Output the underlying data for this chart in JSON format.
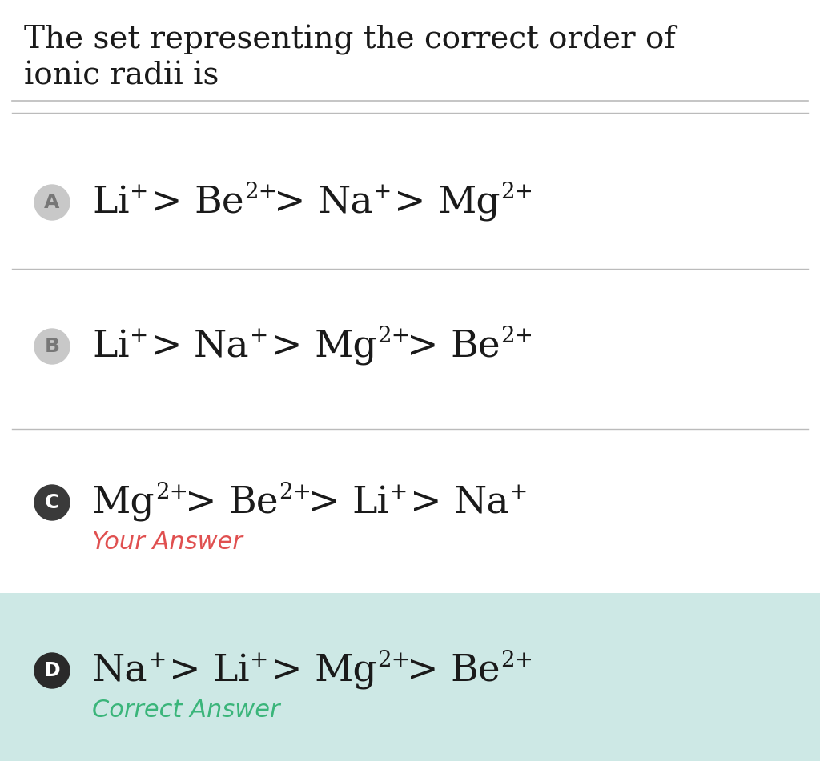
{
  "title_line1": "The set representing the correct order of",
  "title_line2": "ionic radii is",
  "bg_color": "#ffffff",
  "option_d_bg": "#cde8e5",
  "divider_color": "#bbbbbb",
  "text_color": "#1a1a1a",
  "your_answer_color": "#e05050",
  "correct_answer_color": "#3ab57a",
  "options": [
    {
      "label": "A",
      "label_bg": "#c8c8c8",
      "label_text_color": "#777777",
      "formula_parts": [
        [
          "Li",
          "+"
        ],
        [
          " > "
        ],
        [
          "Be",
          "2+"
        ],
        [
          " > "
        ],
        [
          "Na",
          "+"
        ],
        [
          " > "
        ],
        [
          "Mg",
          "2+"
        ]
      ],
      "sub_text": null,
      "sub_text_color": null
    },
    {
      "label": "B",
      "label_bg": "#c8c8c8",
      "label_text_color": "#777777",
      "formula_parts": [
        [
          "Li",
          "+"
        ],
        [
          " > "
        ],
        [
          "Na",
          "+"
        ],
        [
          " > "
        ],
        [
          "Mg",
          "2+"
        ],
        [
          " > "
        ],
        [
          "Be",
          "2+"
        ]
      ],
      "sub_text": null,
      "sub_text_color": null
    },
    {
      "label": "C",
      "label_bg": "#3a3a3a",
      "label_text_color": "#ffffff",
      "formula_parts": [
        [
          "Mg",
          "2+"
        ],
        [
          " > "
        ],
        [
          "Be",
          "2+"
        ],
        [
          " > "
        ],
        [
          "Li",
          "+"
        ],
        [
          " > "
        ],
        [
          "Na",
          "+"
        ]
      ],
      "sub_text": "Your Answer",
      "sub_text_color": "#e05050"
    },
    {
      "label": "D",
      "label_bg": "#2a2a2a",
      "label_text_color": "#ffffff",
      "formula_parts": [
        [
          "Na",
          "+"
        ],
        [
          " > "
        ],
        [
          "Li",
          "+"
        ],
        [
          " > "
        ],
        [
          "Mg",
          "2+"
        ],
        [
          " > "
        ],
        [
          "Be",
          "2+"
        ]
      ],
      "sub_text": "Correct Answer",
      "sub_text_color": "#3ab57a"
    }
  ],
  "title_fontsize": 28,
  "formula_fontsize": 34,
  "sub_text_fontsize": 22,
  "label_fontsize": 18,
  "superscript_fontsize": 20
}
